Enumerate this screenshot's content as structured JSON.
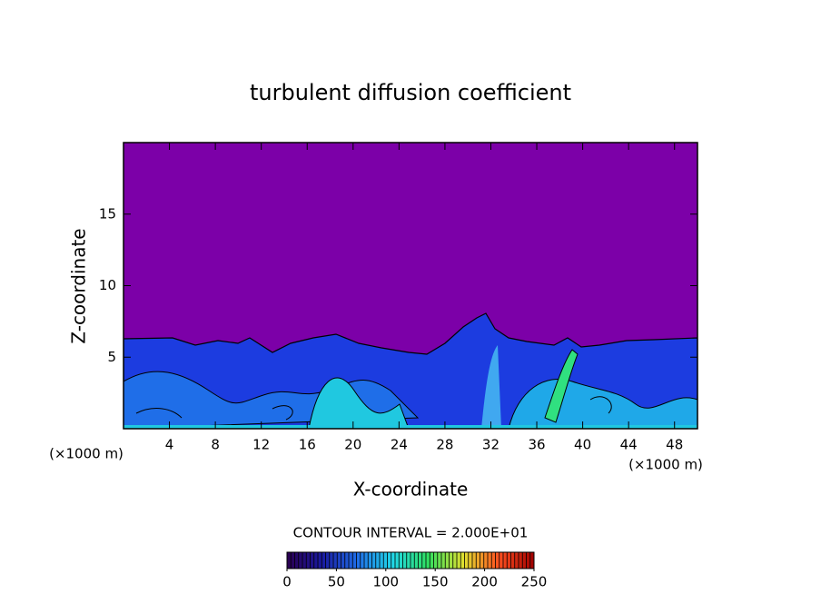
{
  "chart_data": {
    "type": "contour",
    "title": "turbulent diffusion coefficient",
    "x_label": "X-coordinate",
    "y_label": "Z-coordinate",
    "x_unit": "(×1000 m)",
    "xlim": [
      0,
      50
    ],
    "xticks": [
      4,
      8,
      12,
      16,
      20,
      24,
      28,
      32,
      36,
      40,
      44,
      48
    ],
    "ylim": [
      0,
      20
    ],
    "yticks": [
      5,
      10,
      15
    ],
    "contour_interval_label": "CONTOUR INTERVAL = 2.000E+01",
    "colorbar": {
      "clim": [
        0,
        250
      ],
      "ticks": [
        0,
        50,
        100,
        150,
        200,
        250
      ],
      "colors": [
        "#2a0050",
        "#1a1aa0",
        "#1f6ee8",
        "#20d8e8",
        "#30e060",
        "#e0e030",
        "#ff5020",
        "#a00000"
      ]
    }
  }
}
